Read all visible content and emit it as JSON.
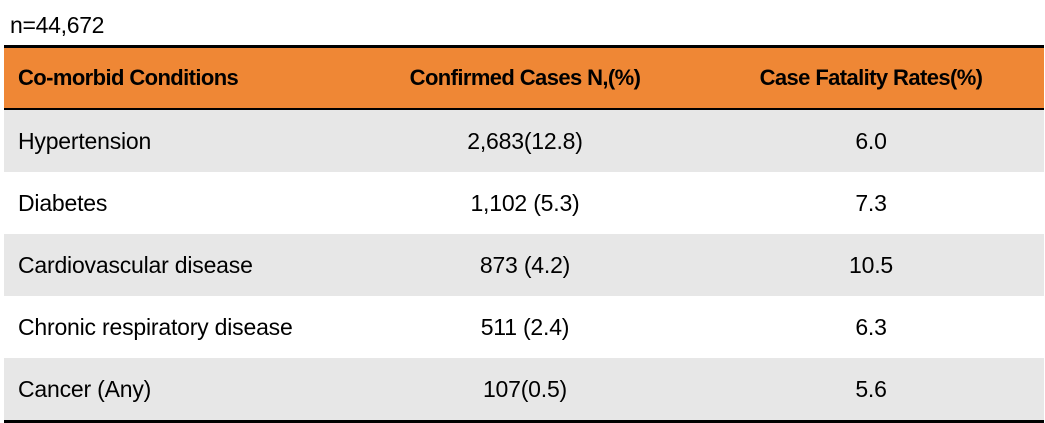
{
  "caption": "n=44,672",
  "table": {
    "columns": [
      "Co-morbid Conditions",
      "Confirmed Cases N,(%)",
      "Case Fatality Rates(%)"
    ],
    "rows": [
      {
        "condition": "Hypertension",
        "cases": "2,683(12.8)",
        "cfr": "6.0"
      },
      {
        "condition": "Diabetes",
        "cases": "1,102 (5.3)",
        "cfr": "7.3"
      },
      {
        "condition": "Cardiovascular disease",
        "cases": "873 (4.2)",
        "cfr": "10.5"
      },
      {
        "condition": "Chronic respiratory disease",
        "cases": "511 (2.4)",
        "cfr": "6.3"
      },
      {
        "condition": "Cancer (Any)",
        "cases": "107(0.5)",
        "cfr": "5.6"
      }
    ]
  },
  "colors": {
    "header_background": "#ef8735",
    "shaded_row": "#e7e7e7",
    "rule": "#000000"
  }
}
